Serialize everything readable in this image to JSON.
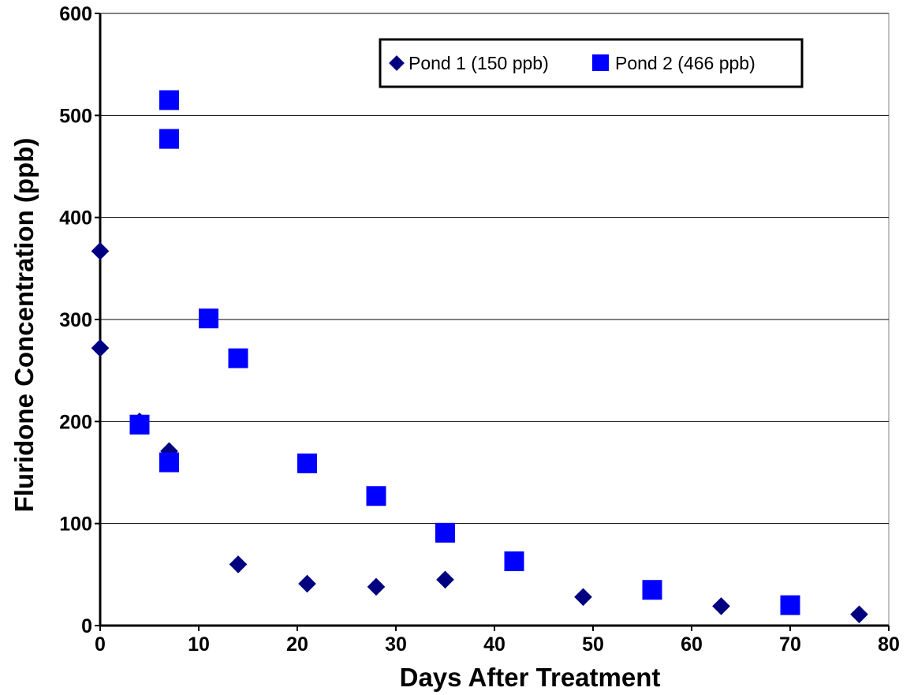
{
  "chart_data": {
    "type": "scatter",
    "xlabel": "Days After Treatment",
    "ylabel": "Fluridone Concentration (ppb)",
    "xlim": [
      0,
      80
    ],
    "ylim": [
      0,
      600
    ],
    "xticks": [
      0,
      10,
      20,
      30,
      40,
      50,
      60,
      70,
      80
    ],
    "yticks": [
      0,
      100,
      200,
      300,
      400,
      500,
      600
    ],
    "grid": "horizontal",
    "legend_position": "top-right",
    "series": [
      {
        "name": "Pond 1 (150 ppb)",
        "marker": "diamond",
        "color": "#000080",
        "points": [
          [
            0,
            367
          ],
          [
            0,
            272
          ],
          [
            4,
            200
          ],
          [
            7,
            171
          ],
          [
            14,
            60
          ],
          [
            21,
            41
          ],
          [
            28,
            38
          ],
          [
            35,
            45
          ],
          [
            49,
            28
          ],
          [
            63,
            19
          ],
          [
            77,
            11
          ]
        ]
      },
      {
        "name": "Pond 2 (466 ppb)",
        "marker": "square",
        "color": "#0000FF",
        "points": [
          [
            7,
            515
          ],
          [
            7,
            477
          ],
          [
            11,
            301
          ],
          [
            14,
            262
          ],
          [
            4,
            197
          ],
          [
            7,
            160
          ],
          [
            21,
            159
          ],
          [
            28,
            127
          ],
          [
            35,
            91
          ],
          [
            42,
            63
          ],
          [
            56,
            35
          ],
          [
            70,
            20
          ]
        ]
      }
    ]
  }
}
